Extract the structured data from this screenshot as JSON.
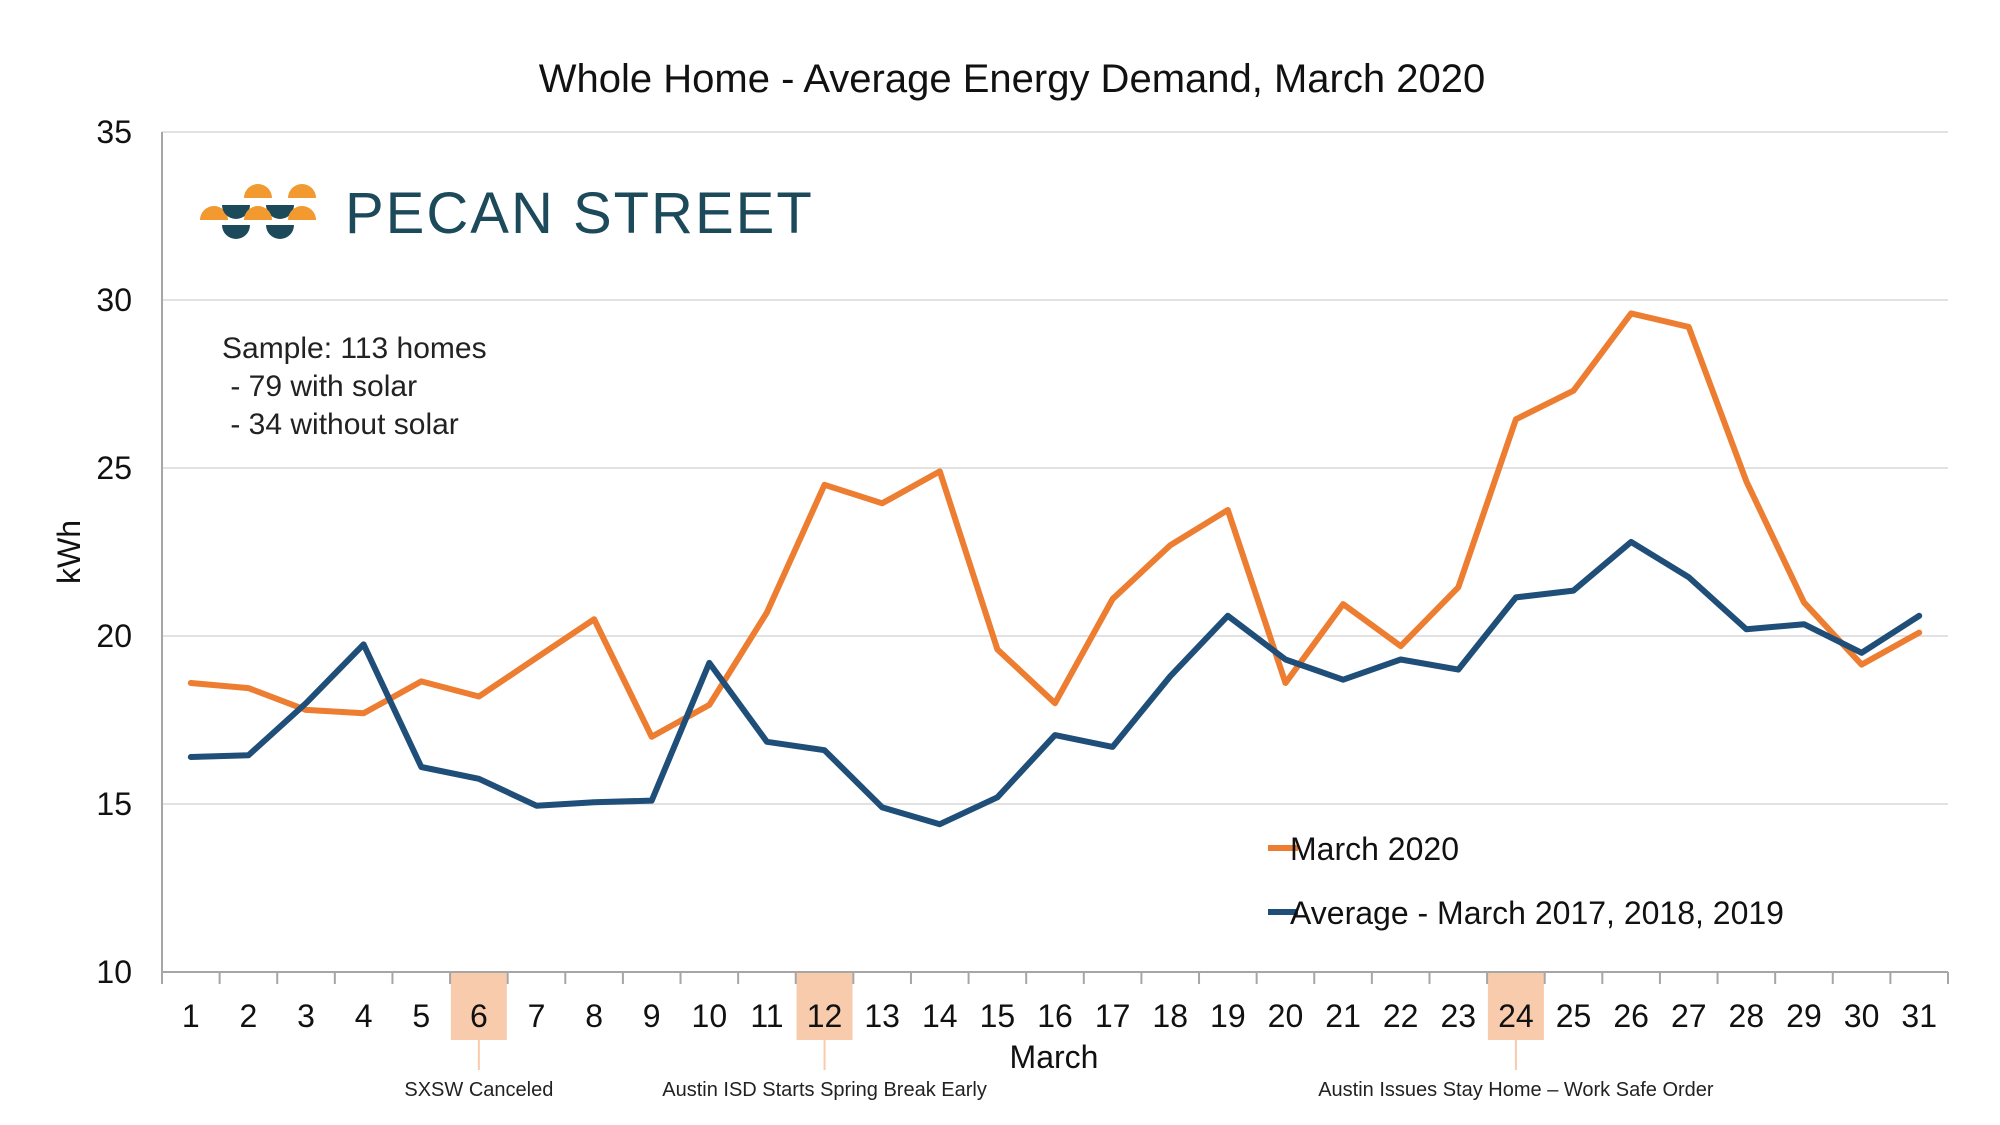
{
  "colors": {
    "march_2020": "#ED7D31",
    "average": "#1F4E79",
    "highlight": "#F8CBAD",
    "grid": "#D9D9D9",
    "axis": "#A6A6A6",
    "brand_dark": "#1c4a5a",
    "brand_orange": "#F29A30"
  },
  "logo": {
    "text": "PECAN STREET",
    "icon": "pecan-street-logo-icon"
  },
  "sample": {
    "line1": "Sample: 113 homes",
    "line2": " - 79 with solar",
    "line3": " - 34 without solar"
  },
  "chart_data": {
    "type": "line",
    "title": "Whole Home - Average Energy Demand, March 2020",
    "xlabel": "March",
    "ylabel": "kWh",
    "ylim": [
      10,
      35
    ],
    "yticks": [
      10,
      15,
      20,
      25,
      30,
      35
    ],
    "grid": true,
    "legend_position": "bottom-right",
    "categories": [
      "1",
      "2",
      "3",
      "4",
      "5",
      "6",
      "7",
      "8",
      "9",
      "10",
      "11",
      "12",
      "13",
      "14",
      "15",
      "16",
      "17",
      "18",
      "19",
      "20",
      "21",
      "22",
      "23",
      "24",
      "25",
      "26",
      "27",
      "28",
      "29",
      "30",
      "31"
    ],
    "series": [
      {
        "name": "March 2020",
        "color": "#ED7D31",
        "values": [
          18.6,
          18.45,
          17.8,
          17.7,
          18.65,
          18.2,
          19.35,
          20.5,
          17.0,
          17.95,
          20.7,
          24.5,
          23.95,
          24.9,
          19.6,
          18.0,
          21.1,
          22.7,
          23.75,
          18.6,
          20.95,
          19.7,
          21.45,
          26.45,
          27.3,
          29.6,
          29.2,
          24.6,
          21.0,
          19.15,
          20.1
        ]
      },
      {
        "name": "Average - March 2017, 2018, 2019",
        "color": "#1F4E79",
        "values": [
          16.4,
          16.45,
          18.0,
          19.75,
          16.1,
          15.75,
          14.95,
          15.05,
          15.1,
          19.2,
          16.85,
          16.6,
          14.9,
          14.4,
          15.2,
          17.05,
          16.7,
          18.8,
          20.6,
          19.3,
          18.7,
          19.3,
          19.0,
          21.15,
          21.35,
          22.8,
          21.75,
          20.2,
          20.35,
          19.5,
          20.6
        ]
      }
    ],
    "highlighted_days": [
      "6",
      "12",
      "24"
    ],
    "annotations": [
      {
        "day": "6",
        "text": "SXSW Canceled"
      },
      {
        "day": "12",
        "text": "Austin ISD Starts Spring Break Early"
      },
      {
        "day": "24",
        "text": "Austin Issues Stay Home – Work Safe Order"
      }
    ]
  }
}
